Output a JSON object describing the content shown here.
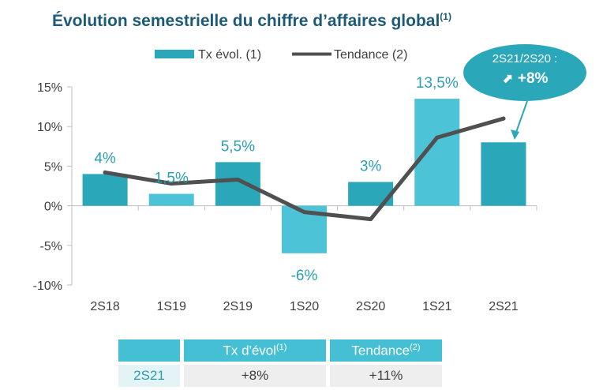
{
  "title": "Évolution semestrielle du chiffre d’affaires global",
  "title_note": "(1)",
  "legend": {
    "bars_label": "Tx évol. (1)",
    "line_label": "Tendance (2)"
  },
  "colors": {
    "bar_dark": "#2aa7b8",
    "bar_light": "#4cc3d6",
    "line": "#505050",
    "title": "#1d5a78"
  },
  "chart_data": {
    "type": "bar",
    "title": "Évolution semestrielle du chiffre d’affaires global",
    "categories": [
      "2S18",
      "1S19",
      "2S19",
      "1S20",
      "2S20",
      "1S21",
      "2S21"
    ],
    "series": [
      {
        "name": "Tx évol. (1)",
        "kind": "bar",
        "values": [
          4,
          1.5,
          5.5,
          -6,
          3,
          13.5,
          8
        ]
      },
      {
        "name": "Tendance (2)",
        "kind": "line",
        "values": [
          4.2,
          2.8,
          3.3,
          -0.8,
          -1.7,
          8.6,
          11
        ]
      }
    ],
    "data_labels": [
      "4%",
      "1,5%",
      "5,5%",
      "-6%",
      "3%",
      "13,5%",
      ""
    ],
    "y_ticks": [
      15,
      10,
      5,
      0,
      -5,
      -10
    ],
    "y_tick_labels": [
      "15%",
      "10%",
      "5%",
      "0%",
      "-5%",
      "-10%"
    ],
    "ylim": [
      -10,
      15
    ],
    "xlabel": "",
    "ylabel": "",
    "legend_position": "top"
  },
  "callout": {
    "title": "2S21/2S20 :",
    "arrow": "⬈",
    "value": "+8%"
  },
  "summary_table": {
    "header_1": "Tx d'évol",
    "header_1_note": "(1)",
    "header_2": "Tendance",
    "header_2_note": "(2)",
    "row_label": "2S21",
    "value_1": "+8%",
    "value_2": "+11%"
  }
}
